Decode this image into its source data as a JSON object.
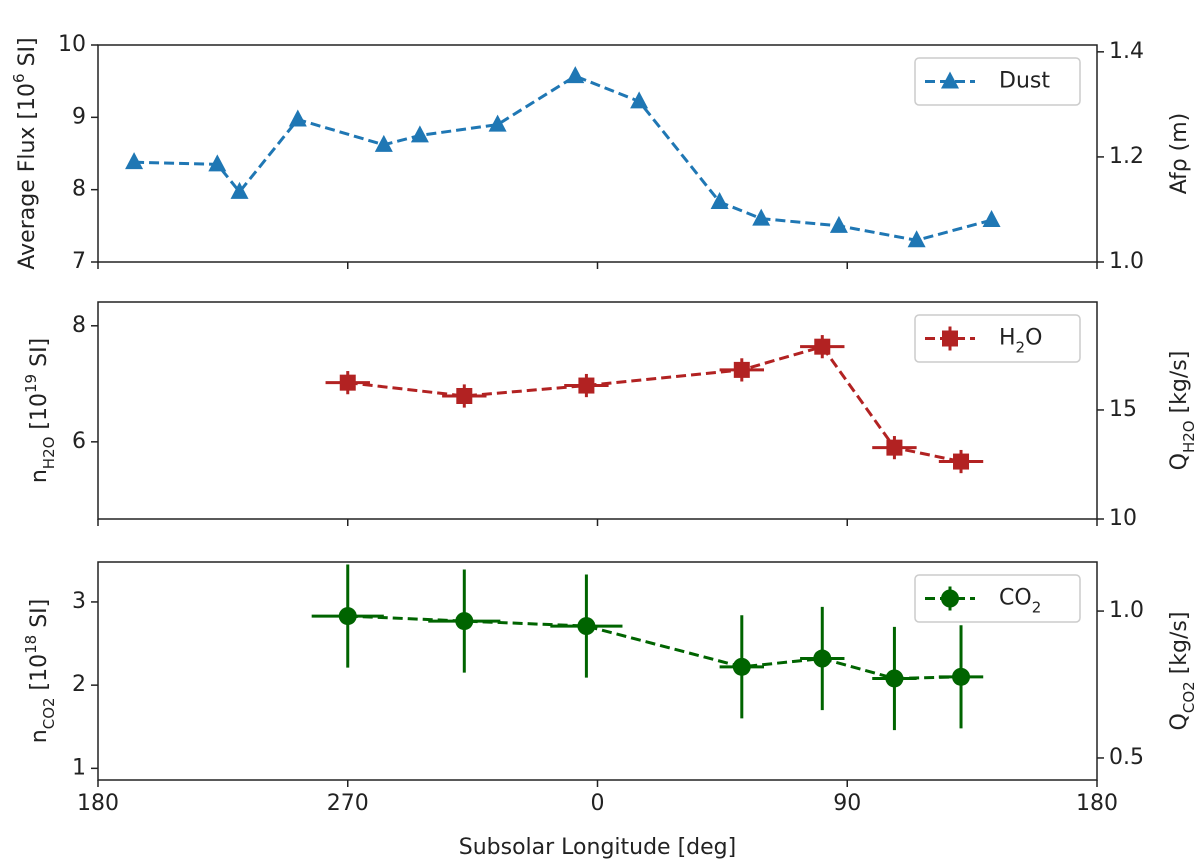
{
  "chart_data": [
    {
      "type": "line",
      "marker": "triangle",
      "color": "#1f77b4",
      "ylabel": [
        {
          "text": "Average Flux [10"
        },
        {
          "sup": "6"
        },
        {
          "text": " SI]"
        }
      ],
      "y2label": [
        {
          "text": "Afρ (m)"
        }
      ],
      "xlim": [
        180,
        540
      ],
      "xticks": [
        {
          "value": 180,
          "label": "180"
        },
        {
          "value": 270,
          "label": "270"
        },
        {
          "value": 360,
          "label": "0"
        },
        {
          "value": 450,
          "label": "90"
        },
        {
          "value": 540,
          "label": "180"
        }
      ],
      "ylim": [
        7,
        10
      ],
      "yticks": [
        7,
        8,
        9,
        10
      ],
      "y2lim": [
        1.0,
        1.413
      ],
      "y2ticks": [
        {
          "value": 1.0,
          "label": "1.0"
        },
        {
          "value": 1.2,
          "label": "1.2"
        },
        {
          "value": 1.4,
          "label": "1.4"
        }
      ],
      "legend": "upper right",
      "series": [
        {
          "name": [
            {
              "text": "Dust"
            }
          ],
          "x": [
            193,
            223,
            231,
            252,
            283,
            296,
            324,
            352,
            375,
            404,
            419,
            447,
            475,
            502
          ],
          "values": [
            8.38,
            8.35,
            7.97,
            8.97,
            8.62,
            8.75,
            8.9,
            9.57,
            9.22,
            7.83,
            7.6,
            7.5,
            7.3,
            7.58
          ]
        }
      ]
    },
    {
      "type": "errorbar",
      "marker": "square",
      "color": "#b22222",
      "ylabel": [
        {
          "text": "n"
        },
        {
          "sub": "H2O"
        },
        {
          "text": " [10"
        },
        {
          "sup": "19"
        },
        {
          "text": " SI]"
        }
      ],
      "y2label": [
        {
          "text": "Q"
        },
        {
          "sub": "H2O"
        },
        {
          "text": " [kg/s]"
        }
      ],
      "xlim": [
        180,
        540
      ],
      "xticks": [
        {
          "value": 180,
          "label": "180"
        },
        {
          "value": 270,
          "label": "270"
        },
        {
          "value": 360,
          "label": "0"
        },
        {
          "value": 450,
          "label": "90"
        },
        {
          "value": 540,
          "label": "180"
        }
      ],
      "ylim": [
        4.67,
        8.41
      ],
      "yticks": [
        6,
        8
      ],
      "y2lim": [
        10,
        19.95
      ],
      "y2ticks": [
        10,
        15
      ],
      "legend": "upper right",
      "series": [
        {
          "name": [
            {
              "text": "H"
            },
            {
              "sub": "2"
            },
            {
              "text": "O"
            }
          ],
          "x": [
            270,
            312,
            356,
            412,
            441,
            467,
            491
          ],
          "values": [
            7.02,
            6.79,
            6.97,
            7.24,
            7.64,
            5.9,
            5.66
          ],
          "xerr": [
            8,
            8,
            8,
            8,
            8,
            8,
            8
          ],
          "yerr": [
            0.2,
            0.2,
            0.2,
            0.2,
            0.2,
            0.2,
            0.2
          ]
        }
      ]
    },
    {
      "type": "errorbar",
      "marker": "circle",
      "color": "#006400",
      "ylabel": [
        {
          "text": "n"
        },
        {
          "sub": "CO2"
        },
        {
          "text": " [10"
        },
        {
          "sup": "18"
        },
        {
          "text": " SI]"
        }
      ],
      "y2label": [
        {
          "text": "Q"
        },
        {
          "sub": "CO2"
        },
        {
          "text": " [kg/s]"
        }
      ],
      "xlabel": "Subsolar Longitude [deg]",
      "xlim": [
        180,
        540
      ],
      "xticks": [
        {
          "value": 180,
          "label": "180"
        },
        {
          "value": 270,
          "label": "270"
        },
        {
          "value": 360,
          "label": "0"
        },
        {
          "value": 450,
          "label": "90"
        },
        {
          "value": 540,
          "label": "180"
        }
      ],
      "ylim": [
        0.86,
        3.48
      ],
      "yticks": [
        1,
        2,
        3
      ],
      "y2lim": [
        0.425,
        1.167
      ],
      "y2ticks": [
        0.5,
        {
          "value": 1.0,
          "label": "1.0"
        }
      ],
      "legend": "upper right",
      "series": [
        {
          "name": [
            {
              "text": "CO"
            },
            {
              "sub": "2"
            }
          ],
          "x": [
            270,
            312,
            356,
            412,
            441,
            467,
            491
          ],
          "values": [
            2.83,
            2.77,
            2.71,
            2.22,
            2.32,
            2.08,
            2.1
          ],
          "xerr": [
            13,
            13,
            13,
            8,
            8,
            8,
            8
          ],
          "yerr": [
            0.62,
            0.62,
            0.62,
            0.62,
            0.62,
            0.62,
            0.62
          ]
        }
      ]
    }
  ]
}
